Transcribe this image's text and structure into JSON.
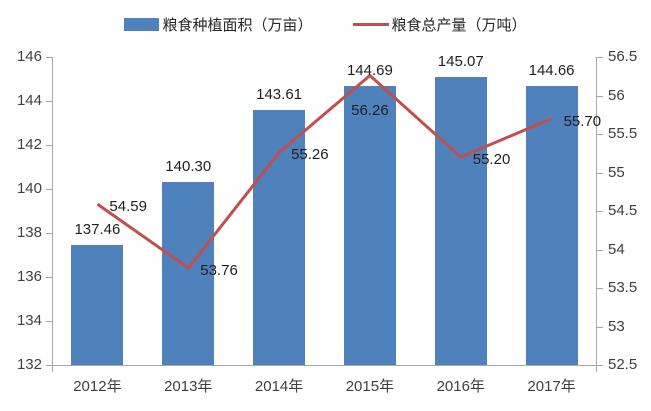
{
  "legend": {
    "items": [
      {
        "label": "粮食种植面积（万亩）",
        "swatch": "bar-swatch-icon",
        "color": "#4f81bd"
      },
      {
        "label": "粮食总产量（万吨）",
        "swatch": "line-swatch-icon",
        "color": "#c0504d"
      }
    ]
  },
  "chart_data": {
    "type": "bar+line",
    "title": "",
    "categories": [
      "2012年",
      "2013年",
      "2014年",
      "2015年",
      "2016年",
      "2017年"
    ],
    "series": [
      {
        "name": "粮食种植面积（万亩）",
        "type": "bar",
        "axis": "left",
        "color": "#4f81bd",
        "values": [
          137.46,
          140.3,
          143.61,
          144.69,
          145.07,
          144.66
        ],
        "labels": [
          "137.46",
          "140.30",
          "143.61",
          "144.69",
          "145.07",
          "144.66"
        ]
      },
      {
        "name": "粮食总产量（万吨）",
        "type": "line",
        "axis": "right",
        "color": "#c0504d",
        "values": [
          54.59,
          53.76,
          55.26,
          56.26,
          55.2,
          55.7
        ],
        "labels": [
          "54.59",
          "53.76",
          "55.26",
          "56.26",
          "55.20",
          "55.70"
        ],
        "label_placement": [
          "right",
          "right",
          "right",
          "below",
          "right",
          "right"
        ]
      }
    ],
    "left_axis": {
      "min": 132,
      "max": 146,
      "step": 2,
      "ticks": [
        "146",
        "144",
        "142",
        "140",
        "138",
        "136",
        "134",
        "132"
      ]
    },
    "right_axis": {
      "min": 52.5,
      "max": 56.5,
      "step": 0.5,
      "ticks": [
        "56.5",
        "56",
        "55.5",
        "55",
        "54.5",
        "54",
        "53.5",
        "53",
        "52.5"
      ]
    },
    "grid": false,
    "legend_position": "top"
  }
}
